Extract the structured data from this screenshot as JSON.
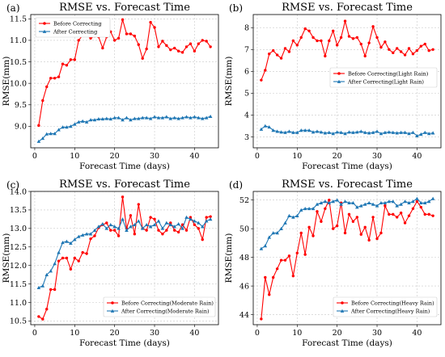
{
  "colors": {
    "before": "#ff0000",
    "after": "#1f77b4"
  },
  "chart_data": [
    {
      "panel": "(a)",
      "type": "line",
      "title": "RMSE vs. Forecast Time",
      "xlabel": "Forecast Time (days)",
      "ylabel": "RMSE(mm)",
      "xlim": [
        -1,
        46
      ],
      "ylim": [
        8.5,
        11.6
      ],
      "xticks": [
        0,
        10,
        20,
        30,
        40
      ],
      "yticks": [
        9.0,
        9.5,
        10.0,
        10.5,
        11.0,
        11.5
      ],
      "yticklabels": [
        "9.0",
        "9.5",
        "10.0",
        "10.5",
        "11.0",
        "11.5"
      ],
      "grid": true,
      "legend_position": "top-left",
      "x": [
        1,
        2,
        3,
        4,
        5,
        6,
        7,
        8,
        9,
        10,
        11,
        12,
        13,
        14,
        15,
        16,
        17,
        18,
        19,
        20,
        21,
        22,
        23,
        24,
        25,
        26,
        27,
        28,
        29,
        30,
        31,
        32,
        33,
        34,
        35,
        36,
        37,
        38,
        39,
        40,
        41,
        42,
        43,
        44
      ],
      "series": [
        {
          "name": "Before Correcting",
          "marker": "circle",
          "color": "#ff0000",
          "values": [
            9.02,
            9.6,
            9.92,
            10.12,
            10.12,
            10.15,
            10.45,
            10.42,
            10.55,
            10.55,
            11.0,
            11.12,
            11.12,
            11.05,
            11.1,
            11.08,
            10.82,
            11.08,
            11.2,
            11.0,
            11.05,
            11.48,
            11.15,
            11.15,
            11.1,
            10.9,
            10.58,
            10.8,
            11.42,
            11.3,
            10.85,
            10.98,
            10.88,
            10.78,
            10.82,
            10.75,
            10.72,
            10.85,
            10.92,
            10.75,
            10.92,
            11.0,
            10.98,
            10.85
          ]
        },
        {
          "name": "After Correcting",
          "marker": "triangle",
          "color": "#1f77b4",
          "values": [
            8.65,
            8.72,
            8.82,
            8.83,
            8.83,
            8.92,
            8.98,
            8.98,
            9.0,
            9.05,
            9.1,
            9.12,
            9.1,
            9.15,
            9.15,
            9.17,
            9.17,
            9.18,
            9.17,
            9.2,
            9.2,
            9.15,
            9.2,
            9.15,
            9.18,
            9.18,
            9.2,
            9.2,
            9.18,
            9.22,
            9.2,
            9.2,
            9.22,
            9.18,
            9.2,
            9.18,
            9.2,
            9.22,
            9.2,
            9.22,
            9.2,
            9.18,
            9.2,
            9.23
          ]
        }
      ]
    },
    {
      "panel": "(b)",
      "type": "line",
      "title": "RMSE vs. Forecast Time",
      "xlabel": "Forecast Time (days)",
      "ylabel": "RMSE(mm)",
      "xlim": [
        -1,
        46
      ],
      "ylim": [
        2.5,
        8.6
      ],
      "xticks": [
        0,
        10,
        20,
        30,
        40
      ],
      "yticks": [
        3,
        4,
        5,
        6,
        7,
        8
      ],
      "yticklabels": [
        "3",
        "4",
        "5",
        "6",
        "7",
        "8"
      ],
      "grid": true,
      "legend_position": "center-right",
      "x": [
        1,
        2,
        3,
        4,
        5,
        6,
        7,
        8,
        9,
        10,
        11,
        12,
        13,
        14,
        15,
        16,
        17,
        18,
        19,
        20,
        21,
        22,
        23,
        24,
        25,
        26,
        27,
        28,
        29,
        30,
        31,
        32,
        33,
        34,
        35,
        36,
        37,
        38,
        39,
        40,
        41,
        42,
        43,
        44
      ],
      "series": [
        {
          "name": "Before Correcting(Light Rain)",
          "marker": "circle",
          "color": "#ff0000",
          "values": [
            5.6,
            6.05,
            6.8,
            6.95,
            6.75,
            6.6,
            7.05,
            6.9,
            7.4,
            7.2,
            7.55,
            7.95,
            7.85,
            7.55,
            7.4,
            7.4,
            6.7,
            7.4,
            7.85,
            7.2,
            7.55,
            8.3,
            7.6,
            7.5,
            7.55,
            7.25,
            6.7,
            7.3,
            8.05,
            7.55,
            7.1,
            7.35,
            7.0,
            6.85,
            7.05,
            6.9,
            6.75,
            7.05,
            6.8,
            6.95,
            7.15,
            7.25,
            6.95,
            7.0
          ]
        },
        {
          "name": "After Correcting(Light Rain)",
          "marker": "triangle",
          "color": "#1f77b4",
          "values": [
            3.35,
            3.5,
            3.45,
            3.3,
            3.25,
            3.22,
            3.2,
            3.25,
            3.2,
            3.2,
            3.3,
            3.3,
            3.3,
            3.22,
            3.25,
            3.22,
            3.18,
            3.2,
            3.15,
            3.22,
            3.2,
            3.15,
            3.22,
            3.2,
            3.22,
            3.25,
            3.2,
            3.18,
            3.2,
            3.25,
            3.15,
            3.2,
            3.22,
            3.2,
            3.18,
            3.2,
            3.2,
            3.15,
            3.2,
            3.05,
            3.12,
            3.2,
            3.15,
            3.18
          ]
        }
      ]
    },
    {
      "panel": "(c)",
      "type": "line",
      "title": "RMSE vs. Forecast Time",
      "xlabel": "Forecast Time (days)",
      "ylabel": "RMSE(mm)",
      "xlim": [
        -1,
        46
      ],
      "ylim": [
        10.4,
        14.0
      ],
      "xticks": [
        0,
        10,
        20,
        30,
        40
      ],
      "yticks": [
        10.5,
        11.0,
        11.5,
        12.0,
        12.5,
        13.0,
        13.5,
        14.0
      ],
      "yticklabels": [
        "10.5",
        "11.0",
        "11.5",
        "12.0",
        "12.5",
        "13.0",
        "13.5",
        "14.0"
      ],
      "grid": true,
      "legend_position": "bottom-right",
      "x": [
        1,
        2,
        3,
        4,
        5,
        6,
        7,
        8,
        9,
        10,
        11,
        12,
        13,
        14,
        15,
        16,
        17,
        18,
        19,
        20,
        21,
        22,
        23,
        24,
        25,
        26,
        27,
        28,
        29,
        30,
        31,
        32,
        33,
        34,
        35,
        36,
        37,
        38,
        39,
        40,
        41,
        42,
        43,
        44
      ],
      "series": [
        {
          "name": "Before Correcting(Moderate Rain)",
          "marker": "circle",
          "color": "#ff0000",
          "values": [
            10.62,
            10.55,
            10.82,
            11.35,
            11.35,
            12.12,
            12.2,
            12.2,
            11.9,
            12.2,
            12.12,
            12.35,
            12.32,
            12.72,
            12.8,
            13.02,
            13.1,
            13.15,
            12.95,
            12.95,
            12.8,
            13.85,
            13.0,
            13.35,
            12.85,
            13.65,
            13.0,
            12.95,
            13.3,
            13.25,
            12.95,
            12.85,
            12.95,
            13.15,
            12.95,
            12.9,
            13.1,
            12.95,
            13.3,
            13.1,
            13.0,
            12.7,
            13.3,
            13.32
          ]
        },
        {
          "name": "After Correcting(Moderate Rain)",
          "marker": "triangle",
          "color": "#1f77b4",
          "values": [
            11.4,
            11.45,
            11.75,
            11.85,
            12.05,
            12.35,
            12.62,
            12.65,
            12.6,
            12.7,
            12.78,
            12.82,
            12.85,
            12.85,
            12.95,
            13.05,
            13.12,
            13.0,
            13.1,
            13.05,
            13.0,
            13.25,
            12.95,
            13.05,
            13.1,
            13.2,
            13.0,
            13.1,
            13.05,
            13.1,
            13.2,
            13.0,
            13.15,
            13.1,
            13.05,
            13.12,
            13.0,
            13.3,
            13.25,
            13.2,
            13.15,
            13.05,
            13.2,
            13.25
          ]
        }
      ]
    },
    {
      "panel": "(d)",
      "type": "line",
      "title": "RMSE vs. Forecast Time",
      "xlabel": "Forecast Time (days)",
      "ylabel": "RMSE(mm)",
      "xlim": [
        -1,
        46
      ],
      "ylim": [
        43.3,
        52.6
      ],
      "xticks": [
        0,
        10,
        20,
        30,
        40
      ],
      "yticks": [
        44,
        46,
        48,
        50,
        52
      ],
      "yticklabels": [
        "44",
        "46",
        "48",
        "50",
        "52"
      ],
      "grid": true,
      "legend_position": "bottom-right",
      "x": [
        1,
        2,
        3,
        4,
        5,
        6,
        7,
        8,
        9,
        10,
        11,
        12,
        13,
        14,
        15,
        16,
        17,
        18,
        19,
        20,
        21,
        22,
        23,
        24,
        25,
        26,
        27,
        28,
        29,
        30,
        31,
        32,
        33,
        34,
        35,
        36,
        37,
        38,
        39,
        40,
        41,
        42,
        43,
        44
      ],
      "series": [
        {
          "name": "Before Correcting(Heavy Rain)",
          "marker": "circle",
          "color": "#ff0000",
          "values": [
            43.7,
            46.6,
            45.4,
            46.6,
            47.2,
            47.8,
            47.8,
            48.1,
            46.7,
            48.3,
            49.7,
            48.2,
            50.1,
            49.5,
            51.2,
            50.5,
            51.4,
            52.0,
            50.0,
            50.2,
            51.8,
            49.7,
            51.0,
            50.5,
            50.8,
            49.6,
            50.1,
            49.2,
            50.8,
            49.3,
            49.7,
            51.6,
            51.0,
            51.0,
            50.8,
            51.1,
            50.4,
            50.9,
            51.4,
            51.9,
            51.5,
            51.0,
            51.0,
            50.9
          ]
        },
        {
          "name": "After Correcting(Heavy Rain)",
          "marker": "triangle",
          "color": "#1f77b4",
          "values": [
            48.6,
            48.8,
            49.4,
            49.7,
            49.7,
            50.0,
            50.4,
            50.9,
            50.8,
            50.9,
            51.3,
            51.4,
            51.4,
            51.4,
            51.7,
            51.8,
            51.9,
            51.8,
            51.9,
            52.0,
            51.7,
            51.9,
            51.8,
            51.8,
            51.5,
            51.6,
            51.7,
            51.8,
            51.7,
            51.6,
            51.8,
            51.8,
            51.9,
            51.9,
            51.6,
            51.7,
            51.9,
            51.8,
            51.9,
            52.1,
            51.8,
            51.8,
            51.9,
            52.1
          ]
        }
      ]
    }
  ]
}
